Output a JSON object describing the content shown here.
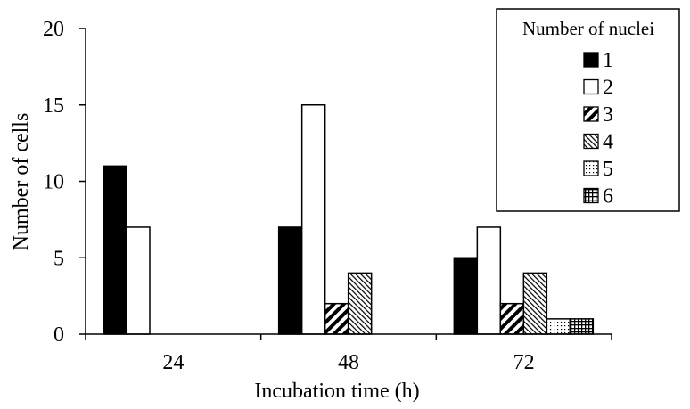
{
  "chart_data": {
    "type": "bar",
    "title": "",
    "xlabel": "Incubation time (h)",
    "ylabel": "Number of cells",
    "categories": [
      "24",
      "48",
      "72"
    ],
    "ylim": [
      0,
      20
    ],
    "yticks": [
      0,
      5,
      10,
      15,
      20
    ],
    "grid": false,
    "legend": {
      "title": "Number of nuclei",
      "placement": "top-right"
    },
    "series": [
      {
        "name": "1",
        "pattern": "solid-black",
        "values": [
          11,
          7,
          5
        ]
      },
      {
        "name": "2",
        "pattern": "white",
        "values": [
          7,
          15,
          7
        ]
      },
      {
        "name": "3",
        "pattern": "wide-diagonal-hatch",
        "values": [
          0,
          2,
          2
        ]
      },
      {
        "name": "4",
        "pattern": "fine-diagonal-hatch",
        "values": [
          0,
          4,
          4
        ]
      },
      {
        "name": "5",
        "pattern": "dots",
        "values": [
          0,
          0,
          1
        ]
      },
      {
        "name": "6",
        "pattern": "grid",
        "values": [
          0,
          0,
          1
        ]
      }
    ]
  }
}
